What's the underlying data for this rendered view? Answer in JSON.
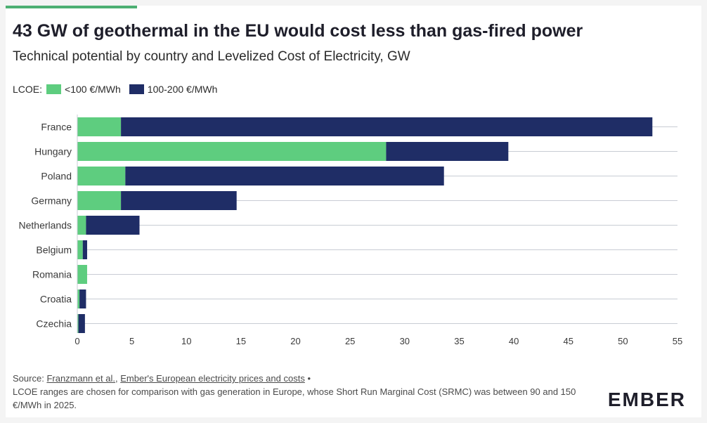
{
  "header": {
    "title": "43 GW of geothermal in the EU would cost less than gas-fired power",
    "subtitle": "Technical potential by country and Levelized Cost of Electricity, GW"
  },
  "legend": {
    "prefix": "LCOE:",
    "items": [
      {
        "label": "<100 €/MWh",
        "color": "#5ecd7f"
      },
      {
        "label": "100-200 €/MWh",
        "color": "#1f2d66"
      }
    ]
  },
  "chart_data": {
    "type": "bar",
    "orientation": "horizontal",
    "stacked": true,
    "categories": [
      "France",
      "Hungary",
      "Poland",
      "Germany",
      "Netherlands",
      "Belgium",
      "Romania",
      "Croatia",
      "Czechia"
    ],
    "series": [
      {
        "name": "<100 €/MWh",
        "color": "#5ecd7f",
        "values": [
          4.0,
          28.3,
          4.4,
          4.0,
          0.8,
          0.5,
          0.9,
          0.2,
          0.1
        ]
      },
      {
        "name": "100-200 €/MWh",
        "color": "#1f2d66",
        "values": [
          48.7,
          11.2,
          29.2,
          10.6,
          4.9,
          0.4,
          0.0,
          0.6,
          0.6
        ]
      }
    ],
    "xlim": [
      0,
      55
    ],
    "xticks": [
      0,
      5,
      10,
      15,
      20,
      25,
      30,
      35,
      40,
      45,
      50,
      55
    ],
    "grid": true
  },
  "footer": {
    "source_prefix": "Source:",
    "source_link_1": "Franzmann et al.",
    "source_separator": ",",
    "source_link_2": "Ember's European electricity prices and costs",
    "source_bullet": "•",
    "note": "LCOE ranges are chosen for comparison with gas generation in Europe, whose Short Run Marginal Cost (SRMC) was between 90 and 150 €/MWh in 2025.",
    "logo_text": "EMBER"
  }
}
